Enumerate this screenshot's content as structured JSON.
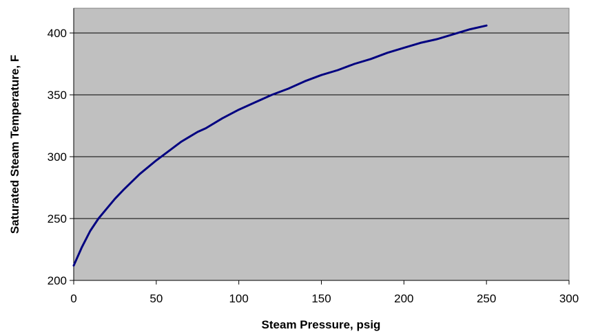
{
  "chart_data": {
    "type": "line",
    "title": "",
    "xlabel": "Steam Pressure, psig",
    "ylabel": "Saturated Steam Temperature, F",
    "xlim": [
      0,
      300
    ],
    "ylim": [
      200,
      420
    ],
    "x_ticks": [
      0,
      50,
      100,
      150,
      200,
      250,
      300
    ],
    "y_ticks": [
      200,
      250,
      300,
      350,
      400
    ],
    "grid": "horizontal",
    "legend": "none",
    "colors": {
      "plot_background": "#c0c0c0",
      "line": "#000080",
      "gridline": "#000000"
    },
    "series": [
      {
        "x": [
          0,
          5,
          10,
          15,
          20,
          25,
          30,
          40,
          50,
          60,
          65,
          70,
          75,
          80,
          90,
          100,
          110,
          120,
          130,
          140,
          150,
          160,
          170,
          180,
          190,
          200,
          210,
          220,
          230,
          240,
          250
        ],
        "values": [
          212,
          227,
          240,
          250,
          258,
          266,
          273,
          286,
          297,
          307,
          312,
          316,
          320,
          323,
          331,
          338,
          344,
          350,
          355,
          361,
          366,
          370,
          375,
          379,
          384,
          388,
          392,
          395,
          399,
          403,
          406
        ]
      }
    ]
  }
}
